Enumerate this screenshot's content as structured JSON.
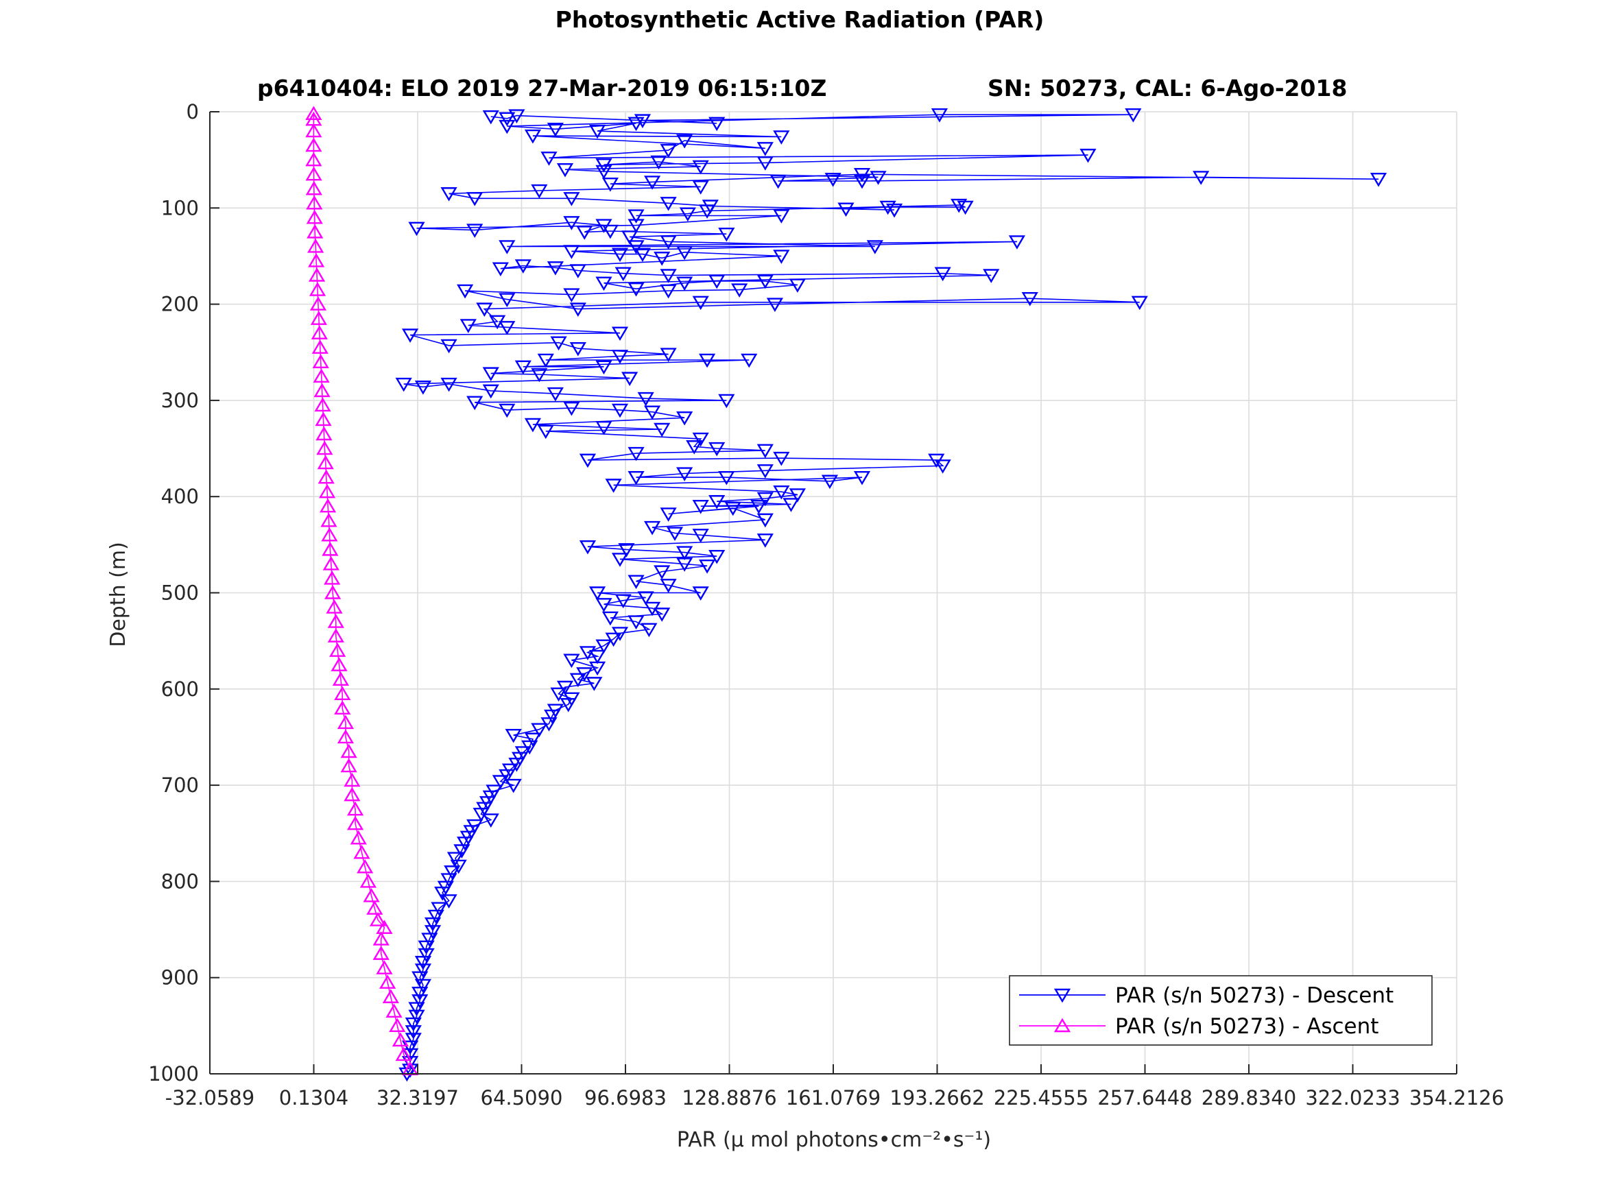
{
  "chart_data": {
    "type": "scatter",
    "title": "Photosynthetic Active Radiation (PAR)",
    "subtitle_left": "p6410404: ELO 2019 27-Mar-2019 06:15:10Z",
    "subtitle_right": "SN: 50273, CAL: 6-Ago-2018",
    "xlabel": "PAR (μ mol photons•cm⁻²•s⁻¹)",
    "ylabel": "Depth (m)",
    "xlim": [
      -32.0589,
      354.2126
    ],
    "ylim": [
      1000,
      0
    ],
    "y_reversed": true,
    "grid": true,
    "legend_position": "bottom-right",
    "x_ticks": [
      "-32.0589",
      "0.1304",
      "32.3197",
      "64.5090",
      "96.6983",
      "128.8876",
      "161.0769",
      "193.2662",
      "225.4555",
      "257.6448",
      "289.8340",
      "322.0233",
      "354.2126"
    ],
    "x_tick_values": [
      -32.0589,
      0.1304,
      32.3197,
      64.509,
      96.6983,
      128.8876,
      161.0769,
      193.2662,
      225.4555,
      257.6448,
      289.834,
      322.0233,
      354.2126
    ],
    "y_ticks": [
      "0",
      "100",
      "200",
      "300",
      "400",
      "500",
      "600",
      "700",
      "800",
      "900",
      "1000"
    ],
    "y_tick_values": [
      0,
      100,
      200,
      300,
      400,
      500,
      600,
      700,
      800,
      900,
      1000
    ],
    "series": [
      {
        "name": "PAR (s/n 50273) - Descent",
        "color": "#0000ff",
        "marker": "triangle-down",
        "points": [
          [
            55,
            5
          ],
          [
            60,
            7
          ],
          [
            63,
            4
          ],
          [
            125,
            12
          ],
          [
            102,
            9
          ],
          [
            254,
            3
          ],
          [
            194,
            3
          ],
          [
            60,
            15
          ],
          [
            75,
            18
          ],
          [
            100,
            12
          ],
          [
            88,
            20
          ],
          [
            145,
            26
          ],
          [
            68,
            25
          ],
          [
            140,
            38
          ],
          [
            115,
            30
          ],
          [
            110,
            40
          ],
          [
            73,
            48
          ],
          [
            240,
            45
          ],
          [
            140,
            53
          ],
          [
            90,
            55
          ],
          [
            107,
            52
          ],
          [
            120,
            57
          ],
          [
            78,
            60
          ],
          [
            90,
            62
          ],
          [
            175,
            68
          ],
          [
            161,
            70
          ],
          [
            144,
            72
          ],
          [
            170,
            72
          ],
          [
            275,
            68
          ],
          [
            330,
            70
          ],
          [
            170,
            65
          ],
          [
            105,
            73
          ],
          [
            92,
            75
          ],
          [
            120,
            78
          ],
          [
            70,
            82
          ],
          [
            42,
            85
          ],
          [
            50,
            90
          ],
          [
            80,
            90
          ],
          [
            110,
            95
          ],
          [
            123,
            98
          ],
          [
            180,
            102
          ],
          [
            165,
            101
          ],
          [
            178,
            99
          ],
          [
            202,
            99
          ],
          [
            200,
            97
          ],
          [
            122,
            103
          ],
          [
            116,
            106
          ],
          [
            100,
            108
          ],
          [
            145,
            108
          ],
          [
            100,
            118
          ],
          [
            32,
            121
          ],
          [
            50,
            123
          ],
          [
            80,
            115
          ],
          [
            90,
            118
          ],
          [
            84,
            125
          ],
          [
            92,
            124
          ],
          [
            128,
            127
          ],
          [
            98,
            130
          ],
          [
            110,
            135
          ],
          [
            174,
            140
          ],
          [
            100,
            140
          ],
          [
            60,
            140
          ],
          [
            218,
            135
          ],
          [
            80,
            145
          ],
          [
            95,
            148
          ],
          [
            102,
            148
          ],
          [
            108,
            152
          ],
          [
            115,
            146
          ],
          [
            145,
            150
          ],
          [
            58,
            163
          ],
          [
            65,
            160
          ],
          [
            75,
            162
          ],
          [
            82,
            165
          ],
          [
            96,
            168
          ],
          [
            110,
            170
          ],
          [
            195,
            168
          ],
          [
            210,
            170
          ],
          [
            90,
            178
          ],
          [
            100,
            184
          ],
          [
            115,
            178
          ],
          [
            125,
            176
          ],
          [
            140,
            176
          ],
          [
            150,
            180
          ],
          [
            132,
            185
          ],
          [
            110,
            186
          ],
          [
            80,
            190
          ],
          [
            47,
            186
          ],
          [
            60,
            195
          ],
          [
            82,
            205
          ],
          [
            143,
            200
          ],
          [
            222,
            194
          ],
          [
            256,
            198
          ],
          [
            120,
            198
          ],
          [
            53,
            205
          ],
          [
            57,
            218
          ],
          [
            48,
            222
          ],
          [
            60,
            224
          ],
          [
            95,
            230
          ],
          [
            30,
            232
          ],
          [
            42,
            243
          ],
          [
            76,
            240
          ],
          [
            82,
            246
          ],
          [
            110,
            252
          ],
          [
            95,
            254
          ],
          [
            72,
            258
          ],
          [
            122,
            258
          ],
          [
            135,
            258
          ],
          [
            65,
            265
          ],
          [
            90,
            265
          ],
          [
            55,
            272
          ],
          [
            70,
            273
          ],
          [
            98,
            277
          ],
          [
            28,
            283
          ],
          [
            34,
            286
          ],
          [
            42,
            283
          ],
          [
            55,
            290
          ],
          [
            75,
            293
          ],
          [
            103,
            298
          ],
          [
            128,
            300
          ],
          [
            50,
            302
          ],
          [
            60,
            310
          ],
          [
            80,
            308
          ],
          [
            95,
            310
          ],
          [
            105,
            312
          ],
          [
            115,
            318
          ],
          [
            68,
            325
          ],
          [
            90,
            328
          ],
          [
            108,
            330
          ],
          [
            72,
            332
          ],
          [
            120,
            340
          ],
          [
            118,
            348
          ],
          [
            125,
            350
          ],
          [
            140,
            352
          ],
          [
            100,
            355
          ],
          [
            85,
            362
          ],
          [
            145,
            360
          ],
          [
            193,
            362
          ],
          [
            195,
            368
          ],
          [
            140,
            373
          ],
          [
            115,
            376
          ],
          [
            100,
            380
          ],
          [
            128,
            380
          ],
          [
            160,
            384
          ],
          [
            170,
            380
          ],
          [
            93,
            388
          ],
          [
            145,
            395
          ],
          [
            150,
            398
          ],
          [
            140,
            402
          ],
          [
            125,
            405
          ],
          [
            148,
            408
          ],
          [
            120,
            410
          ],
          [
            138,
            410
          ],
          [
            110,
            418
          ],
          [
            130,
            412
          ],
          [
            140,
            424
          ],
          [
            105,
            432
          ],
          [
            112,
            438
          ],
          [
            120,
            440
          ],
          [
            140,
            445
          ],
          [
            85,
            452
          ],
          [
            97,
            455
          ],
          [
            115,
            458
          ],
          [
            125,
            462
          ],
          [
            95,
            465
          ],
          [
            115,
            470
          ],
          [
            122,
            472
          ],
          [
            108,
            478
          ],
          [
            100,
            488
          ],
          [
            110,
            492
          ],
          [
            120,
            500
          ],
          [
            88,
            500
          ],
          [
            103,
            505
          ],
          [
            96,
            508
          ],
          [
            90,
            512
          ],
          [
            105,
            516
          ],
          [
            108,
            522
          ],
          [
            92,
            526
          ],
          [
            100,
            530
          ],
          [
            104,
            538
          ],
          [
            95,
            542
          ],
          [
            93,
            548
          ],
          [
            90,
            555
          ],
          [
            85,
            562
          ],
          [
            88,
            566
          ],
          [
            80,
            570
          ],
          [
            88,
            578
          ],
          [
            84,
            584
          ],
          [
            82,
            590
          ],
          [
            87,
            594
          ],
          [
            78,
            598
          ],
          [
            76,
            605
          ],
          [
            80,
            610
          ],
          [
            79,
            616
          ],
          [
            75,
            622
          ],
          [
            74,
            628
          ],
          [
            73,
            636
          ],
          [
            70,
            642
          ],
          [
            62,
            648
          ],
          [
            68,
            652
          ],
          [
            67,
            660
          ],
          [
            65,
            666
          ],
          [
            64,
            672
          ],
          [
            63,
            678
          ],
          [
            61,
            684
          ],
          [
            60,
            690
          ],
          [
            58,
            696
          ],
          [
            62,
            700
          ],
          [
            56,
            706
          ],
          [
            55,
            712
          ],
          [
            54,
            718
          ],
          [
            53,
            724
          ],
          [
            52,
            730
          ],
          [
            55,
            736
          ],
          [
            50,
            742
          ],
          [
            49,
            748
          ],
          [
            48,
            754
          ],
          [
            47,
            760
          ],
          [
            46,
            768
          ],
          [
            44,
            776
          ],
          [
            45,
            784
          ],
          [
            43,
            790
          ],
          [
            42,
            798
          ],
          [
            41,
            806
          ],
          [
            40,
            812
          ],
          [
            42,
            820
          ],
          [
            39,
            828
          ],
          [
            38,
            836
          ],
          [
            37,
            844
          ],
          [
            37,
            852
          ],
          [
            36,
            860
          ],
          [
            35,
            868
          ],
          [
            35,
            876
          ],
          [
            34,
            884
          ],
          [
            34,
            892
          ],
          [
            33,
            900
          ],
          [
            34,
            908
          ],
          [
            33,
            916
          ],
          [
            33,
            924
          ],
          [
            32,
            932
          ],
          [
            32,
            940
          ],
          [
            31,
            948
          ],
          [
            31,
            956
          ],
          [
            31,
            964
          ],
          [
            30,
            972
          ],
          [
            30,
            980
          ],
          [
            30,
            988
          ],
          [
            30,
            996
          ],
          [
            29,
            1000
          ]
        ]
      },
      {
        "name": "PAR (s/n 50273) - Ascent",
        "color": "#ff00ff",
        "marker": "triangle-up",
        "points": [
          [
            30,
            995
          ],
          [
            28,
            980
          ],
          [
            27,
            965
          ],
          [
            26,
            950
          ],
          [
            25,
            935
          ],
          [
            24,
            920
          ],
          [
            23,
            905
          ],
          [
            22,
            890
          ],
          [
            21,
            875
          ],
          [
            21,
            860
          ],
          [
            22,
            848
          ],
          [
            20,
            840
          ],
          [
            19,
            828
          ],
          [
            18,
            815
          ],
          [
            17,
            800
          ],
          [
            16,
            785
          ],
          [
            15,
            770
          ],
          [
            14,
            755
          ],
          [
            13,
            740
          ],
          [
            13,
            725
          ],
          [
            12,
            710
          ],
          [
            12,
            695
          ],
          [
            11,
            680
          ],
          [
            11,
            665
          ],
          [
            10,
            650
          ],
          [
            10,
            635
          ],
          [
            9,
            620
          ],
          [
            9,
            605
          ],
          [
            8.5,
            590
          ],
          [
            8,
            575
          ],
          [
            7.5,
            560
          ],
          [
            7,
            545
          ],
          [
            7,
            530
          ],
          [
            6.5,
            515
          ],
          [
            6,
            500
          ],
          [
            5.8,
            485
          ],
          [
            5.5,
            470
          ],
          [
            5.2,
            455
          ],
          [
            5,
            440
          ],
          [
            4.8,
            425
          ],
          [
            4.5,
            410
          ],
          [
            4.3,
            395
          ],
          [
            4,
            380
          ],
          [
            3.8,
            365
          ],
          [
            3.5,
            350
          ],
          [
            3.3,
            335
          ],
          [
            3.1,
            320
          ],
          [
            2.9,
            305
          ],
          [
            2.7,
            290
          ],
          [
            2.5,
            275
          ],
          [
            2.3,
            260
          ],
          [
            2.1,
            245
          ],
          [
            1.9,
            230
          ],
          [
            1.7,
            215
          ],
          [
            1.5,
            200
          ],
          [
            1.3,
            185
          ],
          [
            1.1,
            170
          ],
          [
            0.9,
            155
          ],
          [
            0.7,
            140
          ],
          [
            0.5,
            125
          ],
          [
            0.4,
            110
          ],
          [
            0.3,
            95
          ],
          [
            0.2,
            80
          ],
          [
            0.15,
            65
          ],
          [
            0.1,
            50
          ],
          [
            0.1,
            35
          ],
          [
            0.1,
            20
          ],
          [
            0.1,
            8
          ],
          [
            0.1,
            2
          ]
        ]
      }
    ]
  }
}
